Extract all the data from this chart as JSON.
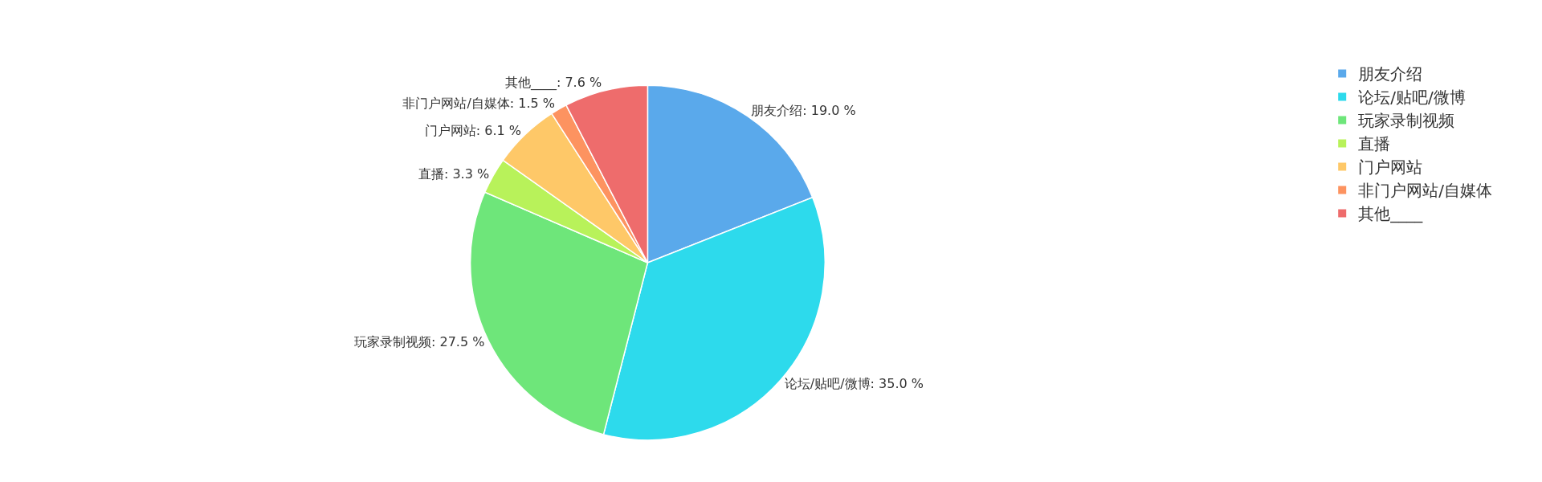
{
  "chart_data": {
    "type": "pie",
    "categories": [
      "朋友介绍",
      "论坛/贴吧/微博",
      "玩家录制视频",
      "直播",
      "门户网站",
      "非门户网站/自媒体",
      "其他____"
    ],
    "values": [
      19.0,
      35.0,
      27.5,
      3.3,
      6.1,
      1.5,
      7.6
    ],
    "value_labels": [
      "朋友介绍: 19.0 %",
      "论坛/贴吧/微博: 35.0 %",
      "玩家录制视频: 27.5 %",
      "直播: 3.3 %",
      "门户网站: 6.1 %",
      "非门户网站/自媒体: 1.5 %",
      "其他____: 7.6 %"
    ],
    "colors": [
      "#5aa9eb",
      "#2ddaec",
      "#6ee67a",
      "#b8f25a",
      "#fec868",
      "#fd9360",
      "#ee6c6c"
    ],
    "legend": "top right"
  }
}
